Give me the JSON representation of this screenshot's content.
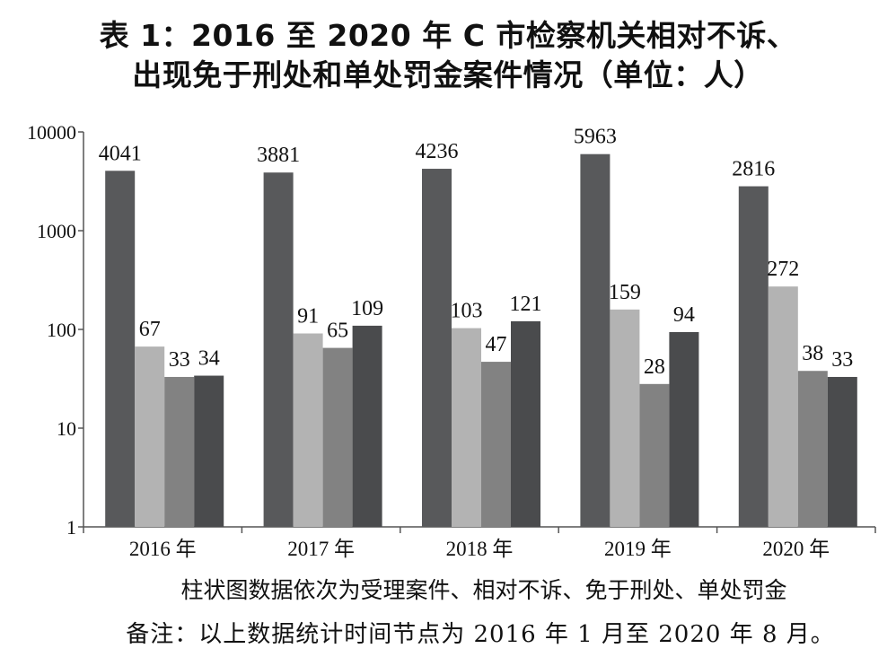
{
  "title_line1": "表 1：2016 至 2020 年 C 市检察机关相对不诉、",
  "title_line2": "出现免于刑处和单处罚金案件情况（单位：人）",
  "series_note": "柱状图数据依次为受理案件、相对不诉、免于刑处、单处罚金",
  "footnote": "备注：以上数据统计时间节点为 2016 年 1 月至 2020 年 8 月。",
  "colors": {
    "series": [
      "#58595b",
      "#b3b3b3",
      "#828282",
      "#4a4b4d"
    ],
    "axis": "#555555"
  },
  "chart_data": {
    "type": "bar",
    "scale": "log",
    "categories": [
      "2016 年",
      "2017 年",
      "2018 年",
      "2019 年",
      "2020 年"
    ],
    "series": [
      {
        "values": [
          4041,
          3881,
          4236,
          5963,
          2816
        ]
      },
      {
        "values": [
          67,
          91,
          103,
          159,
          272
        ]
      },
      {
        "values": [
          33,
          65,
          47,
          28,
          38
        ]
      },
      {
        "values": [
          34,
          109,
          121,
          94,
          33
        ]
      }
    ],
    "ylim": [
      1,
      10000
    ],
    "yticks": [
      1,
      10,
      100,
      1000,
      10000
    ],
    "ytick_labels": [
      "1",
      "10",
      "100",
      "1000",
      "10000"
    ],
    "grid": false
  }
}
